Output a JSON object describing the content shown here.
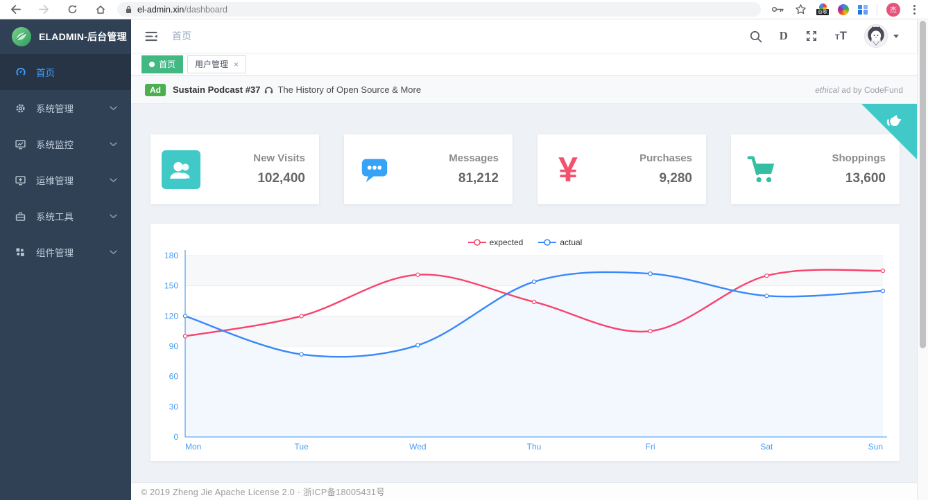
{
  "browser": {
    "url_host": "el-admin.xin",
    "url_path": "/dashboard",
    "extension_badge": "谷歌",
    "profile_initial": "杰"
  },
  "app": {
    "logo_title": "ELADMIN-后台管理",
    "breadcrumb": "首页"
  },
  "sidebar": {
    "items": [
      {
        "label": "首页",
        "icon": "dashboard-icon",
        "active": true,
        "expandable": false
      },
      {
        "label": "系统管理",
        "icon": "gear-icon",
        "active": false,
        "expandable": true
      },
      {
        "label": "系统监控",
        "icon": "monitor-chart-icon",
        "active": false,
        "expandable": true
      },
      {
        "label": "运维管理",
        "icon": "ops-monitor-icon",
        "active": false,
        "expandable": true
      },
      {
        "label": "系统工具",
        "icon": "toolbox-icon",
        "active": false,
        "expandable": true
      },
      {
        "label": "组件管理",
        "icon": "components-icon",
        "active": false,
        "expandable": true
      }
    ]
  },
  "tags": [
    {
      "label": "首页",
      "active": true,
      "closable": false
    },
    {
      "label": "用户管理",
      "active": false,
      "closable": true
    }
  ],
  "ad": {
    "badge": "Ad",
    "title": "Sustain Podcast #37",
    "icon": "headphones-icon",
    "text": "The History of Open Source & More",
    "attribution_italic": "ethical",
    "attribution_rest": " ad by CodeFund"
  },
  "cards": [
    {
      "label": "New Visits",
      "value": "102,400",
      "icon": "people-icon",
      "color": "#40c9c6"
    },
    {
      "label": "Messages",
      "value": "81,212",
      "icon": "message-icon",
      "color": "#36a3f7"
    },
    {
      "label": "Purchases",
      "value": "9,280",
      "icon": "money-yen-icon",
      "color": "#f4516c"
    },
    {
      "label": "Shoppings",
      "value": "13,600",
      "icon": "shopping-cart-icon",
      "color": "#34bfa3"
    }
  ],
  "chart_data": {
    "type": "line",
    "title": "",
    "x": [
      "Mon",
      "Tue",
      "Wed",
      "Thu",
      "Fri",
      "Sat",
      "Sun"
    ],
    "series": [
      {
        "name": "expected",
        "color": "#F8436D",
        "values": [
          100,
          120,
          161,
          134,
          105,
          160,
          165
        ]
      },
      {
        "name": "actual",
        "color": "#3888FA",
        "values": [
          120,
          82,
          91,
          154,
          162,
          140,
          145
        ],
        "area_color": "#F3F8FF"
      }
    ],
    "ylim": [
      0,
      180
    ],
    "yticks": [
      0,
      30,
      60,
      90,
      120,
      150,
      180
    ],
    "smooth": true,
    "legend_position": "top",
    "grid": true,
    "axis_color": "#4A9EF3",
    "grid_color": "#E8ECF2",
    "band_color": "#F7F8FA"
  },
  "footer": {
    "text": "© 2019 Zheng Jie Apache License 2.0 · 浙ICP备18005431号"
  }
}
